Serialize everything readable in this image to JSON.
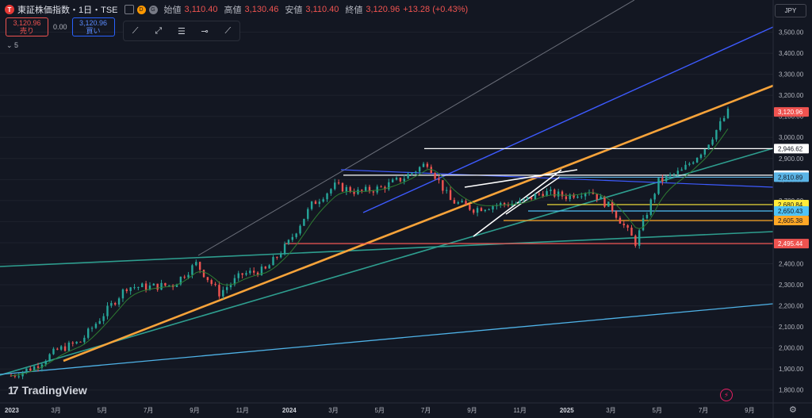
{
  "header": {
    "logo": "T",
    "title": "東証株価指数・1日・TSE",
    "badge_d": "D",
    "badge_g": "G",
    "open_label": "始値",
    "open_value": "3,110.40",
    "high_label": "高値",
    "high_value": "3,130.46",
    "low_label": "安値",
    "low_value": "3,110.40",
    "close_label": "終値",
    "close_value": "3,120.96",
    "change": "+13.28 (+0.43%)"
  },
  "trade": {
    "sell_price": "3,120.96",
    "sell_label": "売り",
    "spread": "0.00",
    "buy_price": "3,120.96",
    "buy_label": "買い"
  },
  "indicator_count": "⌄  5",
  "toolbar": {
    "icons": [
      "trend-line-icon",
      "ray-icon",
      "parallel-channel-icon",
      "horizontal-ray-icon",
      "extended-line-icon"
    ]
  },
  "currency": "JPY",
  "brand": "TradingView",
  "brand_mark": "17",
  "colors": {
    "background": "#131722",
    "up": "#26a69a",
    "down": "#ef5350",
    "orange": "#f7a33a",
    "blue": "#3d5afe",
    "teal": "#2e9e8f",
    "lightblue": "#4fb3e8"
  },
  "chart_data": {
    "type": "line",
    "title": "東証株価指数・1日・TSE",
    "ylim": [
      1750,
      3600
    ],
    "yticks": [
      "3,500.00",
      "3,400.00",
      "3,300.00",
      "3,200.00",
      "3,100.00",
      "3,000.00",
      "2,900.00",
      "2,800.00",
      "2,700.00",
      "2,600.00",
      "2,500.00",
      "2,400.00",
      "2,300.00",
      "2,200.00",
      "2,100.00",
      "2,000.00",
      "1,900.00",
      "1,800.00"
    ],
    "xticks": [
      "2023",
      "3月",
      "5月",
      "7月",
      "9月",
      "11月",
      "2024",
      "3月",
      "5月",
      "7月",
      "9月",
      "11月",
      "2025",
      "3月",
      "5月",
      "7月",
      "9月"
    ],
    "series": [
      {
        "type": "candles",
        "x": [
          "2023-01",
          "2023-02",
          "2023-03",
          "2023-04",
          "2023-05",
          "2023-06",
          "2023-07",
          "2023-08",
          "2023-09",
          "2023-10",
          "2023-11",
          "2023-12",
          "2024-01",
          "2024-02",
          "2024-03",
          "2024-04",
          "2024-05",
          "2024-06",
          "2024-07",
          "2024-08",
          "2024-09",
          "2024-10",
          "2024-11",
          "2024-12",
          "2025-01",
          "2025-02",
          "2025-03",
          "2025-04",
          "2025-05",
          "2025-06",
          "2025-07",
          "2025-08"
        ],
        "values": [
          1868,
          1910,
          1990,
          2030,
          2160,
          2290,
          2290,
          2300,
          2400,
          2260,
          2350,
          2370,
          2500,
          2680,
          2770,
          2740,
          2760,
          2810,
          2880,
          2700,
          2660,
          2680,
          2690,
          2740,
          2720,
          2750,
          2660,
          2500,
          2790,
          2840,
          2950,
          3120
        ]
      }
    ],
    "horizontal_levels": [
      {
        "label": "2,946.62",
        "value": 2946.62,
        "color": "#ffffff"
      },
      {
        "label": "2,820.40",
        "value": 2820.4,
        "color": "#ffffff"
      },
      {
        "label": "2,810.89",
        "value": 2810.89,
        "color": "#5ab4e6"
      },
      {
        "label": "2,680.84",
        "value": 2680.84,
        "color": "#ffeb3b"
      },
      {
        "label": "2,650.43",
        "value": 2650.43,
        "color": "#4fc3f7"
      },
      {
        "label": "2,605.38",
        "value": 2605.38,
        "color": "#ffa726"
      },
      {
        "label": "2,495.44",
        "value": 2495.44,
        "color": "#ef5350"
      }
    ],
    "last_price": {
      "label": "3,120.96",
      "value": 3120.96
    }
  }
}
